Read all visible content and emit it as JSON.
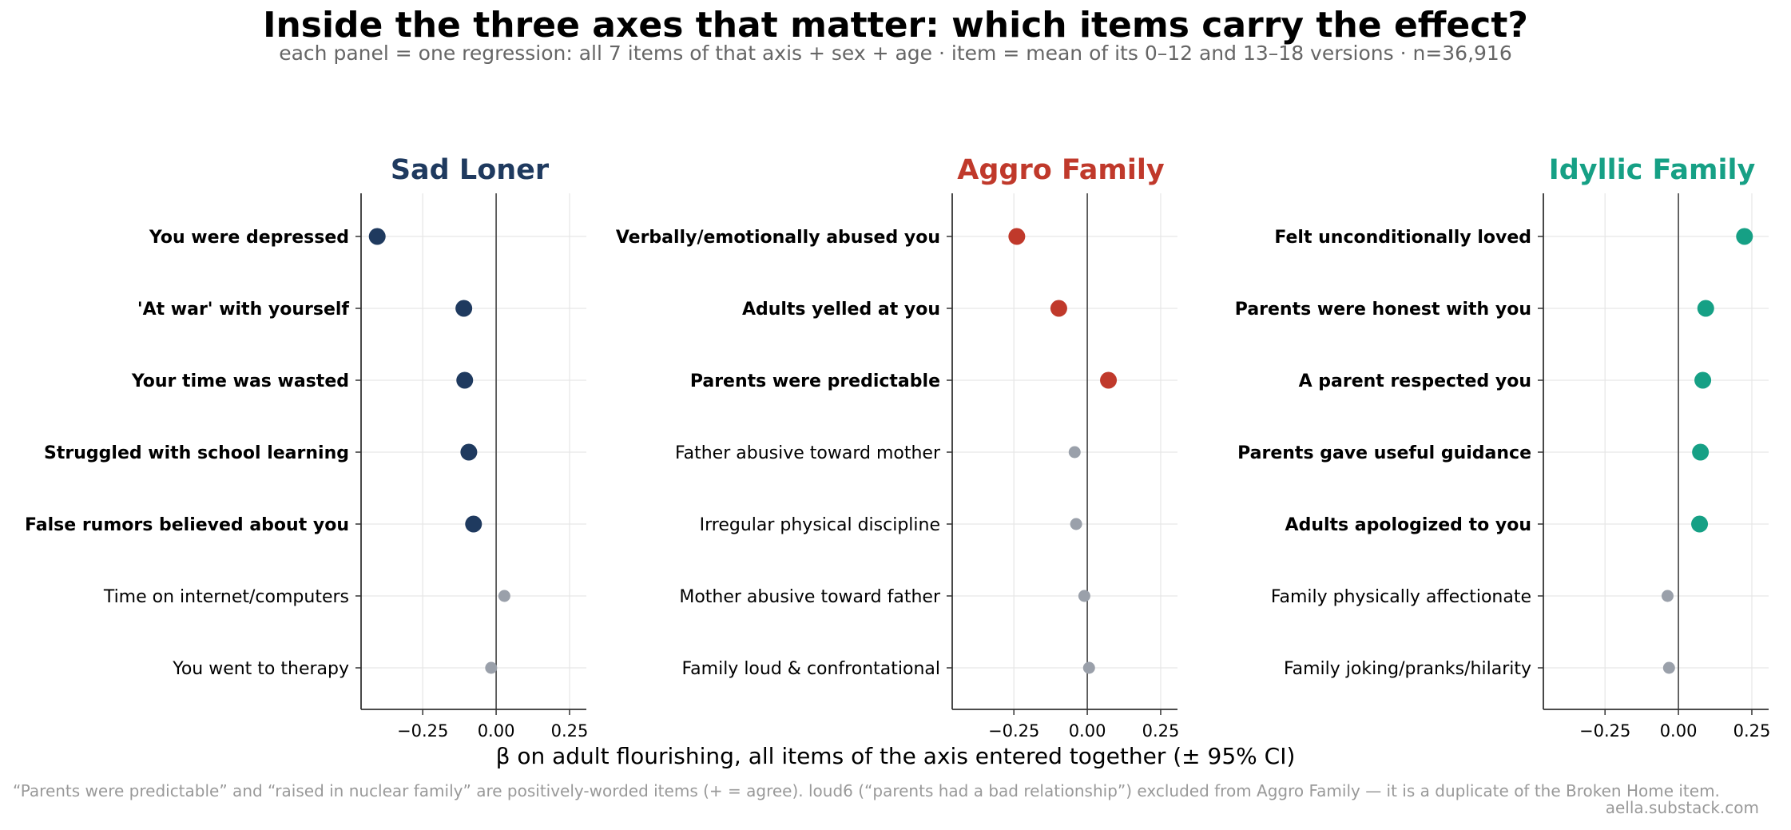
{
  "title": "Inside the three axes that matter: which items carry the effect?",
  "subtitle": "each panel = one regression: all 7 items of that axis + sex + age · item = mean of its 0–12 and 13–18 versions · n=36,916",
  "xlabel": "β on adult flourishing, all items of the axis entered together (± 95% CI)",
  "footnote": "“Parents were predictable” and “raised in nuclear family” are positively-worded items (+ = agree). loud6 (“parents had a bad relationship”) excluded from Aggro Family — it is a duplicate of the Broken Home item.",
  "credit": "aella.substack.com",
  "colors": {
    "insignificant": "#9aa0aa",
    "grid": "#e6e6e6",
    "axis": "#333333",
    "zero_line": "#444444"
  },
  "chart_data": [
    {
      "type": "scatter",
      "title": "Sad Loner",
      "color": "#1f3a5f",
      "xlim": [
        -0.46,
        0.28
      ],
      "xticks": [
        -0.25,
        0.0,
        0.25
      ],
      "xtick_labels": [
        "−0.25",
        "0.00",
        "0.25"
      ],
      "grid": true,
      "items": [
        {
          "label": "You were depressed",
          "value": -0.405,
          "significant": true
        },
        {
          "label": "'At war' with yourself",
          "value": -0.11,
          "significant": true
        },
        {
          "label": "Your time was wasted",
          "value": -0.107,
          "significant": true
        },
        {
          "label": "Struggled with school learning",
          "value": -0.093,
          "significant": true
        },
        {
          "label": "False rumors believed about you",
          "value": -0.077,
          "significant": true
        },
        {
          "label": "Time on internet/computers",
          "value": 0.028,
          "significant": false
        },
        {
          "label": "You went to therapy",
          "value": -0.017,
          "significant": false
        }
      ]
    },
    {
      "type": "scatter",
      "title": "Aggro Family",
      "color": "#c0392b",
      "xlim": [
        -0.46,
        0.28
      ],
      "xticks": [
        -0.25,
        0.0,
        0.25
      ],
      "xtick_labels": [
        "−0.25",
        "0.00",
        "0.25"
      ],
      "grid": true,
      "items": [
        {
          "label": "Verbally/emotionally abused you",
          "value": -0.24,
          "significant": true
        },
        {
          "label": "Adults yelled at you",
          "value": -0.097,
          "significant": true
        },
        {
          "label": "Parents were predictable",
          "value": 0.072,
          "significant": true
        },
        {
          "label": "Father abusive toward mother",
          "value": -0.043,
          "significant": false
        },
        {
          "label": "Irregular physical discipline",
          "value": -0.038,
          "significant": false
        },
        {
          "label": "Mother abusive toward father",
          "value": -0.01,
          "significant": false
        },
        {
          "label": "Family loud & confrontational",
          "value": 0.006,
          "significant": false
        }
      ]
    },
    {
      "type": "scatter",
      "title": "Idyllic Family",
      "color": "#16a085",
      "xlim": [
        -0.46,
        0.28
      ],
      "xticks": [
        -0.25,
        0.0,
        0.25
      ],
      "xtick_labels": [
        "−0.25",
        "0.00",
        "0.25"
      ],
      "grid": true,
      "items": [
        {
          "label": "Felt unconditionally loved",
          "value": 0.225,
          "significant": true
        },
        {
          "label": "Parents were honest with you",
          "value": 0.093,
          "significant": true
        },
        {
          "label": "A parent respected you",
          "value": 0.083,
          "significant": true
        },
        {
          "label": "Parents gave useful guidance",
          "value": 0.075,
          "significant": true
        },
        {
          "label": "Adults apologized to you",
          "value": 0.072,
          "significant": true
        },
        {
          "label": "Family physically affectionate",
          "value": -0.037,
          "significant": false
        },
        {
          "label": "Family joking/pranks/hilarity",
          "value": -0.032,
          "significant": false
        }
      ]
    }
  ]
}
